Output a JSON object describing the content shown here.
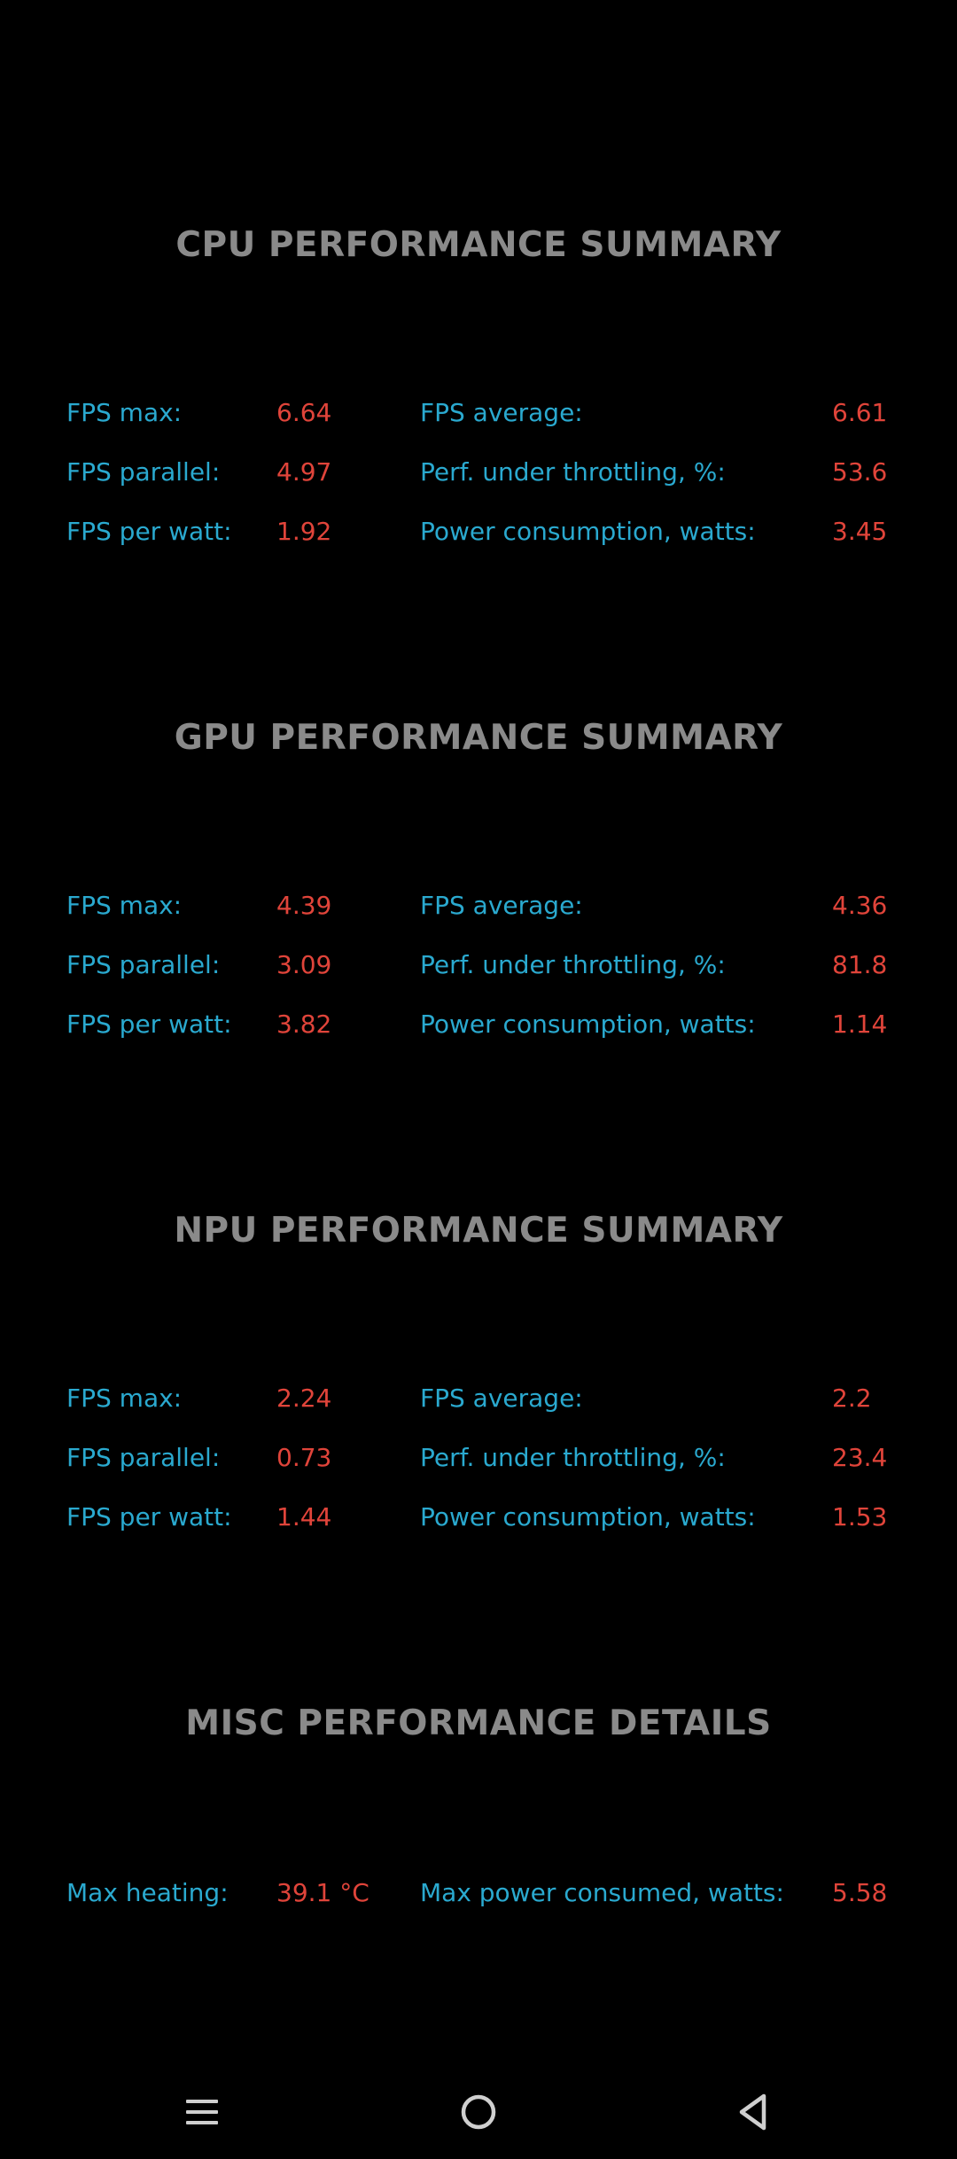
{
  "sections": [
    {
      "title": "CPU PERFORMANCE SUMMARY",
      "rows": [
        {
          "l1": "FPS max:",
          "v1": "6.64",
          "l2": "FPS average:",
          "v2": "6.61"
        },
        {
          "l1": "FPS parallel:",
          "v1": "4.97",
          "l2": "Perf. under throttling, %:",
          "v2": "53.6"
        },
        {
          "l1": "FPS per watt:",
          "v1": "1.92",
          "l2": "Power consumption, watts:",
          "v2": "3.45"
        }
      ]
    },
    {
      "title": "GPU PERFORMANCE SUMMARY",
      "rows": [
        {
          "l1": "FPS max:",
          "v1": "4.39",
          "l2": "FPS average:",
          "v2": "4.36"
        },
        {
          "l1": "FPS parallel:",
          "v1": "3.09",
          "l2": "Perf. under throttling, %:",
          "v2": "81.8"
        },
        {
          "l1": "FPS per watt:",
          "v1": "3.82",
          "l2": "Power consumption, watts:",
          "v2": "1.14"
        }
      ]
    },
    {
      "title": "NPU PERFORMANCE SUMMARY",
      "rows": [
        {
          "l1": "FPS max:",
          "v1": "2.24",
          "l2": "FPS average:",
          "v2": "2.2"
        },
        {
          "l1": "FPS parallel:",
          "v1": "0.73",
          "l2": "Perf. under throttling, %:",
          "v2": "23.4"
        },
        {
          "l1": "FPS per watt:",
          "v1": "1.44",
          "l2": "Power consumption, watts:",
          "v2": "1.53"
        }
      ]
    },
    {
      "title": "MISC PERFORMANCE DETAILS",
      "rows": [
        {
          "l1": "Max heating:",
          "v1": "39.1 °C",
          "l2": "Max power consumed, watts:",
          "v2": "5.58"
        }
      ]
    }
  ],
  "colors": {
    "background": "#000000",
    "title": "#8a8a8a",
    "label": "#2aa9cf",
    "value": "#e0443a",
    "nav_icon": "#cfcfcf"
  },
  "navbar": {
    "icons": [
      "menu-icon",
      "home-icon",
      "back-icon"
    ]
  }
}
